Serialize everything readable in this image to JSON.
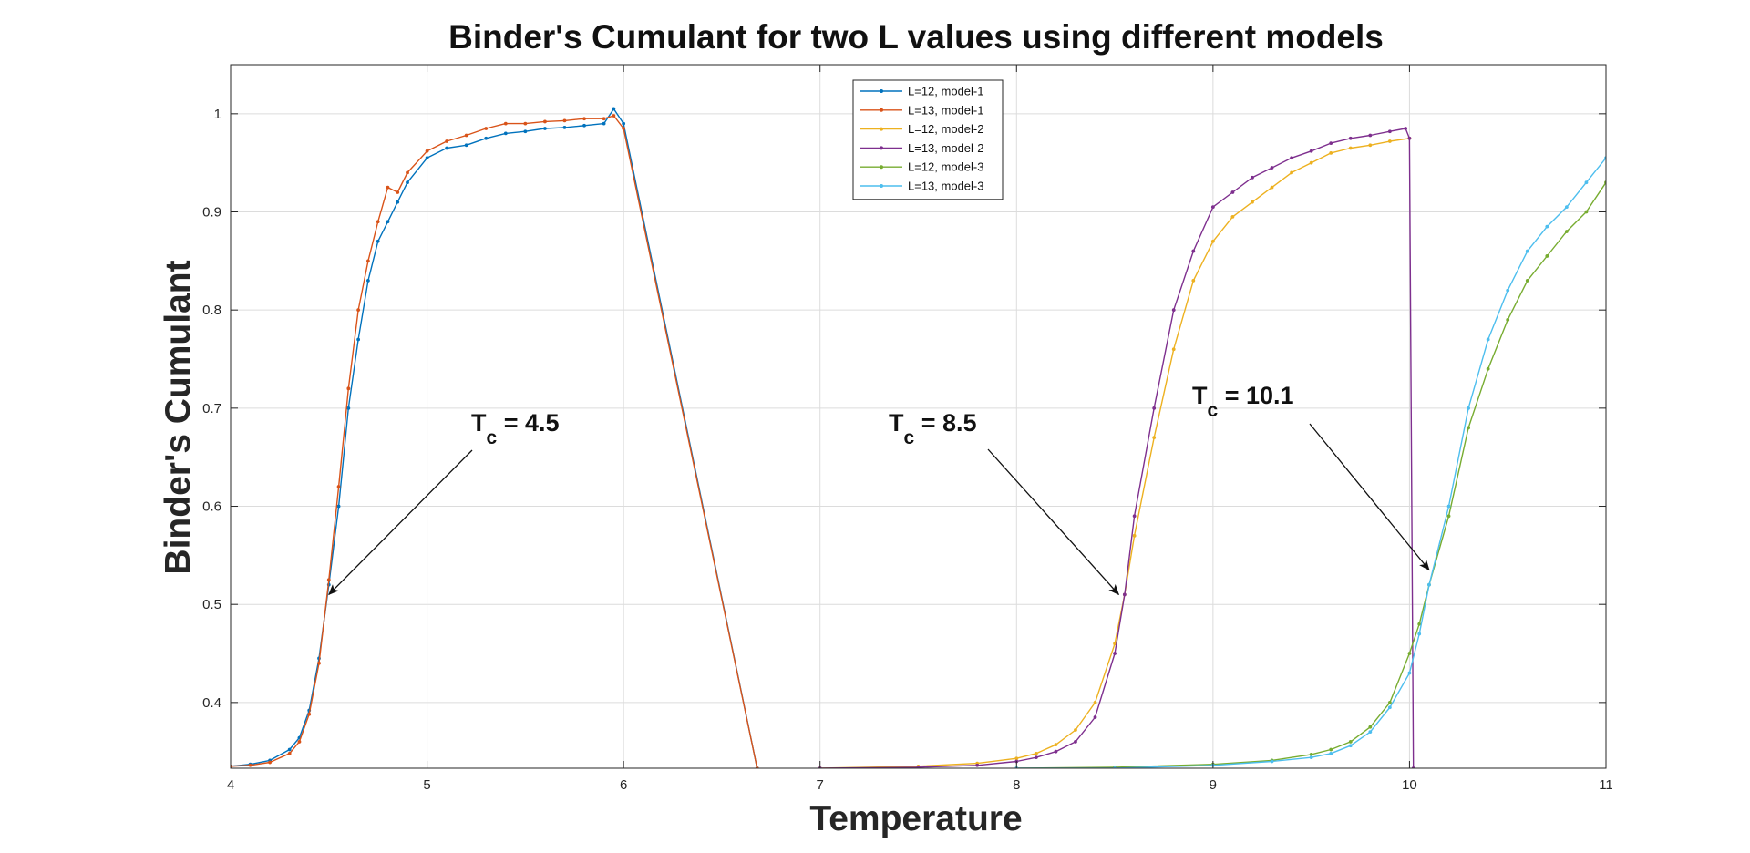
{
  "chart_data": {
    "type": "line",
    "title": "Binder's Cumulant for two L values using different models",
    "xlabel": "Temperature",
    "ylabel": "Binder's Cumulant",
    "xlim": [
      4,
      11
    ],
    "ylim": [
      0.333,
      1.05
    ],
    "x_ticks": [
      "4",
      "5",
      "6",
      "7",
      "8",
      "9",
      "10",
      "11"
    ],
    "y_ticks": [
      "0.4",
      "0.5",
      "0.6",
      "0.7",
      "0.8",
      "0.9",
      "1"
    ],
    "grid": true,
    "legend_position": "top-center",
    "series": [
      {
        "name": "L=12, model-1",
        "color": "#0072BD",
        "points": [
          [
            4.0,
            0.335
          ],
          [
            4.1,
            0.337
          ],
          [
            4.2,
            0.341
          ],
          [
            4.3,
            0.352
          ],
          [
            4.35,
            0.364
          ],
          [
            4.4,
            0.392
          ],
          [
            4.45,
            0.445
          ],
          [
            4.5,
            0.52
          ],
          [
            4.55,
            0.6
          ],
          [
            4.6,
            0.7
          ],
          [
            4.65,
            0.77
          ],
          [
            4.7,
            0.83
          ],
          [
            4.75,
            0.87
          ],
          [
            4.8,
            0.89
          ],
          [
            4.85,
            0.91
          ],
          [
            4.9,
            0.93
          ],
          [
            5.0,
            0.955
          ],
          [
            5.1,
            0.965
          ],
          [
            5.2,
            0.968
          ],
          [
            5.3,
            0.975
          ],
          [
            5.4,
            0.98
          ],
          [
            5.5,
            0.982
          ],
          [
            5.6,
            0.985
          ],
          [
            5.7,
            0.986
          ],
          [
            5.8,
            0.988
          ],
          [
            5.9,
            0.99
          ],
          [
            5.95,
            1.005
          ],
          [
            6.0,
            0.99
          ],
          [
            6.68,
            0.333
          ]
        ]
      },
      {
        "name": "L=13, model-1",
        "color": "#D95319",
        "points": [
          [
            4.0,
            0.335
          ],
          [
            4.1,
            0.336
          ],
          [
            4.2,
            0.339
          ],
          [
            4.3,
            0.348
          ],
          [
            4.35,
            0.36
          ],
          [
            4.4,
            0.388
          ],
          [
            4.45,
            0.44
          ],
          [
            4.5,
            0.525
          ],
          [
            4.55,
            0.62
          ],
          [
            4.6,
            0.72
          ],
          [
            4.65,
            0.8
          ],
          [
            4.7,
            0.85
          ],
          [
            4.75,
            0.89
          ],
          [
            4.8,
            0.925
          ],
          [
            4.85,
            0.92
          ],
          [
            4.9,
            0.94
          ],
          [
            5.0,
            0.962
          ],
          [
            5.1,
            0.972
          ],
          [
            5.2,
            0.978
          ],
          [
            5.3,
            0.985
          ],
          [
            5.4,
            0.99
          ],
          [
            5.5,
            0.99
          ],
          [
            5.6,
            0.992
          ],
          [
            5.7,
            0.993
          ],
          [
            5.8,
            0.995
          ],
          [
            5.9,
            0.995
          ],
          [
            5.95,
            0.998
          ],
          [
            6.0,
            0.985
          ],
          [
            6.68,
            0.333
          ]
        ]
      },
      {
        "name": "L=12, model-2",
        "color": "#EDB120",
        "points": [
          [
            7.0,
            0.333
          ],
          [
            7.5,
            0.335
          ],
          [
            7.8,
            0.338
          ],
          [
            8.0,
            0.343
          ],
          [
            8.1,
            0.348
          ],
          [
            8.2,
            0.357
          ],
          [
            8.3,
            0.372
          ],
          [
            8.4,
            0.4
          ],
          [
            8.5,
            0.46
          ],
          [
            8.55,
            0.51
          ],
          [
            8.6,
            0.57
          ],
          [
            8.7,
            0.67
          ],
          [
            8.8,
            0.76
          ],
          [
            8.9,
            0.83
          ],
          [
            9.0,
            0.87
          ],
          [
            9.1,
            0.895
          ],
          [
            9.2,
            0.91
          ],
          [
            9.3,
            0.925
          ],
          [
            9.4,
            0.94
          ],
          [
            9.5,
            0.95
          ],
          [
            9.6,
            0.96
          ],
          [
            9.7,
            0.965
          ],
          [
            9.8,
            0.968
          ],
          [
            9.9,
            0.972
          ],
          [
            10.0,
            0.975
          ]
        ]
      },
      {
        "name": "L=13, model-2",
        "color": "#7E2F8E",
        "points": [
          [
            7.0,
            0.333
          ],
          [
            7.5,
            0.334
          ],
          [
            7.8,
            0.336
          ],
          [
            8.0,
            0.34
          ],
          [
            8.1,
            0.344
          ],
          [
            8.2,
            0.35
          ],
          [
            8.3,
            0.36
          ],
          [
            8.4,
            0.385
          ],
          [
            8.5,
            0.45
          ],
          [
            8.55,
            0.51
          ],
          [
            8.6,
            0.59
          ],
          [
            8.7,
            0.7
          ],
          [
            8.8,
            0.8
          ],
          [
            8.9,
            0.86
          ],
          [
            9.0,
            0.905
          ],
          [
            9.1,
            0.92
          ],
          [
            9.2,
            0.935
          ],
          [
            9.3,
            0.945
          ],
          [
            9.4,
            0.955
          ],
          [
            9.5,
            0.962
          ],
          [
            9.6,
            0.97
          ],
          [
            9.7,
            0.975
          ],
          [
            9.8,
            0.978
          ],
          [
            9.9,
            0.982
          ],
          [
            9.98,
            0.985
          ],
          [
            10.0,
            0.975
          ],
          [
            10.02,
            0.333
          ]
        ]
      },
      {
        "name": "L=12, model-3",
        "color": "#77AC30",
        "points": [
          [
            8.0,
            0.333
          ],
          [
            8.5,
            0.334
          ],
          [
            9.0,
            0.337
          ],
          [
            9.3,
            0.341
          ],
          [
            9.5,
            0.347
          ],
          [
            9.6,
            0.352
          ],
          [
            9.7,
            0.36
          ],
          [
            9.8,
            0.375
          ],
          [
            9.9,
            0.4
          ],
          [
            10.0,
            0.45
          ],
          [
            10.05,
            0.48
          ],
          [
            10.1,
            0.52
          ],
          [
            10.2,
            0.59
          ],
          [
            10.3,
            0.68
          ],
          [
            10.4,
            0.74
          ],
          [
            10.5,
            0.79
          ],
          [
            10.6,
            0.83
          ],
          [
            10.7,
            0.855
          ],
          [
            10.8,
            0.88
          ],
          [
            10.9,
            0.9
          ],
          [
            11.0,
            0.93
          ]
        ]
      },
      {
        "name": "L=13, model-3",
        "color": "#4DBEEE",
        "points": [
          [
            8.0,
            0.333
          ],
          [
            8.5,
            0.333
          ],
          [
            9.0,
            0.336
          ],
          [
            9.3,
            0.34
          ],
          [
            9.5,
            0.344
          ],
          [
            9.6,
            0.348
          ],
          [
            9.7,
            0.356
          ],
          [
            9.8,
            0.37
          ],
          [
            9.9,
            0.395
          ],
          [
            10.0,
            0.43
          ],
          [
            10.05,
            0.47
          ],
          [
            10.1,
            0.52
          ],
          [
            10.2,
            0.6
          ],
          [
            10.3,
            0.7
          ],
          [
            10.4,
            0.77
          ],
          [
            10.5,
            0.82
          ],
          [
            10.6,
            0.86
          ],
          [
            10.7,
            0.885
          ],
          [
            10.8,
            0.905
          ],
          [
            10.9,
            0.93
          ],
          [
            11.0,
            0.955
          ]
        ]
      }
    ],
    "annotations": [
      {
        "main": "T",
        "sub": "c",
        "rest": " = 4.5",
        "target": [
          4.5,
          0.51
        ]
      },
      {
        "main": "T",
        "sub": "c",
        "rest": " = 8.5",
        "target": [
          8.52,
          0.51
        ]
      },
      {
        "main": "T",
        "sub": "c",
        "rest": " = 10.1",
        "target": [
          10.1,
          0.535
        ]
      }
    ]
  }
}
